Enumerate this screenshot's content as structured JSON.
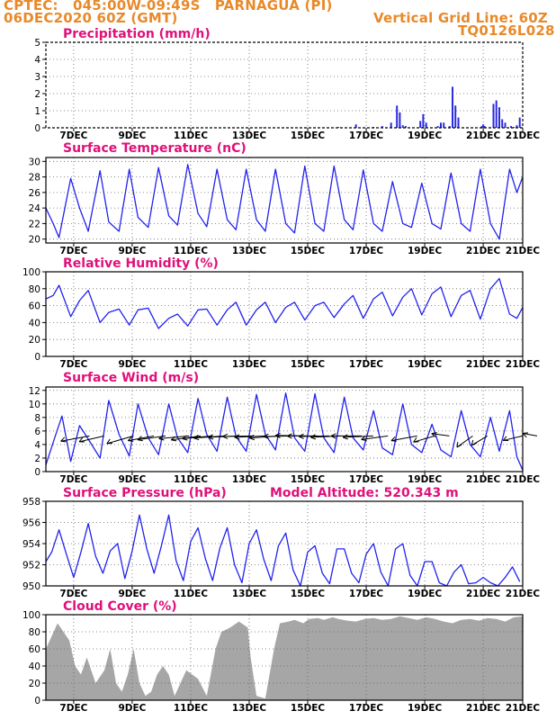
{
  "header": {
    "line1": "CPTEC:   045:00W-09:49S   PARNAGUA (PI)",
    "line2": "06DEC2020 60Z (GMT)",
    "grid_note": "Vertical Grid Line: 60Z",
    "model_code": "TQ0126L028"
  },
  "colors": {
    "header": "#e8892a",
    "title": "#e0107a",
    "line": "#2222ee",
    "bar": "#2a2ae0",
    "cloud": "#a6a6a6"
  },
  "x_ticks": [
    "7DEC",
    "9DEC",
    "11DEC",
    "13DEC",
    "15DEC",
    "17DEC",
    "19DEC",
    "21DEC"
  ],
  "chart_data": [
    {
      "id": "precip",
      "type": "bar",
      "title": "Precipitation (mm/h)",
      "ylim": [
        0,
        5
      ],
      "yticks": [
        0,
        1,
        2,
        3,
        4,
        5
      ],
      "x_days": [
        0.4,
        1.2,
        2.5,
        3.6,
        4.9,
        6.1,
        7.4,
        8.9,
        10.0,
        10.6,
        11.2,
        11.5,
        11.8,
        12.0,
        12.1,
        12.2,
        12.3,
        12.8,
        12.9,
        13.0,
        13.4,
        13.5,
        13.6,
        13.8,
        13.9,
        14.0,
        14.1,
        14.9,
        14.95,
        15.0,
        15.3,
        15.4,
        15.5,
        15.6,
        15.7,
        15.9,
        16.0,
        16.1,
        16.2
      ],
      "values": [
        0.02,
        0.02,
        0.02,
        0.02,
        0.03,
        0.02,
        0.02,
        0.02,
        0.05,
        0.2,
        0.05,
        0.1,
        0.3,
        1.3,
        0.9,
        0.15,
        0.1,
        0.4,
        0.8,
        0.3,
        0.1,
        0.3,
        0.3,
        0.1,
        2.4,
        1.3,
        0.6,
        0.1,
        0.2,
        0.1,
        1.4,
        1.6,
        1.2,
        0.5,
        0.3,
        0.1,
        0.05,
        0.15,
        0.6
      ]
    },
    {
      "id": "temp",
      "type": "line",
      "title": "Surface Temperature (nC)",
      "ylim": [
        19.5,
        30.5
      ],
      "yticks": [
        20,
        22,
        24,
        26,
        28,
        30
      ],
      "x_days": [
        0.0,
        0.25,
        0.45,
        0.85,
        1.15,
        1.45,
        1.85,
        2.15,
        2.5,
        2.85,
        3.15,
        3.5,
        3.85,
        4.2,
        4.5,
        4.85,
        5.2,
        5.5,
        5.85,
        6.2,
        6.5,
        6.85,
        7.2,
        7.5,
        7.85,
        8.2,
        8.5,
        8.85,
        9.2,
        9.5,
        9.85,
        10.2,
        10.5,
        10.85,
        11.2,
        11.5,
        11.85,
        12.2,
        12.5,
        12.85,
        13.2,
        13.5,
        13.85,
        14.2,
        14.5,
        14.85,
        15.2,
        15.5,
        15.85,
        16.1,
        16.3
      ],
      "values": [
        24.0,
        22.0,
        20.2,
        27.8,
        24.0,
        21.0,
        28.8,
        22.2,
        21.0,
        29.0,
        22.8,
        21.5,
        29.2,
        23.0,
        21.8,
        29.6,
        23.3,
        21.6,
        29.0,
        22.5,
        21.2,
        29.0,
        22.5,
        21.0,
        29.0,
        22.0,
        20.8,
        29.4,
        22.0,
        21.0,
        29.4,
        22.5,
        21.2,
        28.9,
        22.0,
        21.0,
        27.4,
        22.0,
        21.5,
        27.2,
        22.0,
        21.3,
        28.5,
        22.0,
        21.0,
        29.0,
        22.0,
        20.0,
        29.0,
        26.0,
        28.0
      ]
    },
    {
      "id": "rh",
      "type": "line",
      "title": "Relative Humidity (%)",
      "ylim": [
        0,
        100
      ],
      "yticks": [
        0,
        20,
        40,
        60,
        80,
        100
      ],
      "x_days": [
        0.0,
        0.25,
        0.45,
        0.85,
        1.15,
        1.45,
        1.85,
        2.15,
        2.5,
        2.85,
        3.15,
        3.5,
        3.85,
        4.2,
        4.5,
        4.85,
        5.2,
        5.5,
        5.85,
        6.2,
        6.5,
        6.85,
        7.2,
        7.5,
        7.85,
        8.2,
        8.5,
        8.85,
        9.2,
        9.5,
        9.85,
        10.2,
        10.5,
        10.85,
        11.2,
        11.5,
        11.85,
        12.2,
        12.5,
        12.85,
        13.2,
        13.5,
        13.85,
        14.2,
        14.5,
        14.85,
        15.2,
        15.5,
        15.85,
        16.1,
        16.3
      ],
      "values": [
        68,
        72,
        84,
        47,
        66,
        78,
        40,
        52,
        56,
        37,
        55,
        57,
        33,
        45,
        50,
        36,
        55,
        56,
        37,
        55,
        64,
        37,
        55,
        64,
        40,
        58,
        64,
        43,
        60,
        64,
        46,
        62,
        72,
        45,
        68,
        76,
        48,
        70,
        80,
        49,
        74,
        82,
        47,
        72,
        78,
        44,
        80,
        92,
        50,
        45,
        58
      ]
    },
    {
      "id": "wind",
      "type": "line",
      "title": "Surface Wind (m/s)",
      "ylim": [
        0,
        12.5
      ],
      "yticks": [
        0,
        2,
        4,
        6,
        8,
        10,
        12
      ],
      "x_days": [
        0.0,
        0.3,
        0.55,
        0.85,
        1.15,
        1.45,
        1.85,
        2.15,
        2.5,
        2.85,
        3.15,
        3.5,
        3.85,
        4.2,
        4.5,
        4.85,
        5.2,
        5.5,
        5.85,
        6.2,
        6.5,
        6.85,
        7.2,
        7.5,
        7.85,
        8.2,
        8.5,
        8.85,
        9.2,
        9.5,
        9.85,
        10.2,
        10.5,
        10.85,
        11.2,
        11.5,
        11.85,
        12.2,
        12.5,
        12.85,
        13.2,
        13.5,
        13.85,
        14.2,
        14.5,
        14.85,
        15.2,
        15.5,
        15.85,
        16.1,
        16.3
      ],
      "values": [
        1.0,
        5.0,
        8.2,
        1.5,
        6.8,
        4.8,
        2.0,
        10.5,
        5.5,
        2.3,
        10.0,
        5.0,
        2.5,
        10.0,
        5.0,
        2.8,
        10.8,
        5.5,
        3.0,
        11.0,
        5.2,
        3.0,
        11.4,
        5.5,
        3.2,
        11.6,
        5.0,
        3.0,
        11.5,
        5.0,
        2.8,
        11.0,
        5.0,
        3.2,
        9.0,
        3.5,
        2.5,
        10.0,
        4.0,
        2.8,
        7.0,
        3.2,
        2.2,
        9.0,
        4.0,
        2.2,
        8.0,
        3.0,
        9.0,
        2.2,
        0.2
      ],
      "arrows_x_days": [
        1.0,
        1.5,
        2.5,
        3.2,
        3.6,
        4.4,
        4.8,
        5.2,
        5.6,
        6.1,
        6.6,
        7.0,
        7.5,
        8.0,
        8.4,
        8.8,
        9.2,
        9.6,
        10.3,
        10.7,
        11.2,
        12.2,
        12.8,
        13.3,
        14.1,
        14.6,
        15.8,
        16.3
      ],
      "arrows_dir_deg": [
        200,
        205,
        210,
        200,
        195,
        190,
        195,
        190,
        188,
        185,
        182,
        185,
        188,
        182,
        178,
        180,
        182,
        185,
        180,
        185,
        195,
        200,
        210,
        165,
        235,
        230,
        205,
        160
      ],
      "arrows_len": [
        1.0,
        0.9,
        1.0,
        0.9,
        0.95,
        1.0,
        1.0,
        1.0,
        1.0,
        1.0,
        1.0,
        1.0,
        1.0,
        1.0,
        1.0,
        1.0,
        1.0,
        1.0,
        1.0,
        1.0,
        0.9,
        0.9,
        0.8,
        0.6,
        0.9,
        0.8,
        0.7,
        0.5
      ]
    },
    {
      "id": "pres",
      "type": "line",
      "title": "Surface Pressure (hPa)",
      "ylim": [
        950,
        958
      ],
      "yticks": [
        950,
        952,
        954,
        956,
        958
      ],
      "annotation": "Model Altitude: 520.343 m",
      "x_days": [
        0.0,
        0.2,
        0.45,
        0.7,
        0.95,
        1.2,
        1.45,
        1.7,
        1.95,
        2.2,
        2.45,
        2.7,
        2.95,
        3.2,
        3.45,
        3.7,
        3.95,
        4.2,
        4.45,
        4.7,
        4.95,
        5.2,
        5.45,
        5.7,
        5.95,
        6.2,
        6.45,
        6.7,
        6.95,
        7.2,
        7.45,
        7.7,
        7.95,
        8.2,
        8.45,
        8.7,
        8.95,
        9.2,
        9.45,
        9.7,
        9.95,
        10.2,
        10.45,
        10.7,
        10.95,
        11.2,
        11.45,
        11.7,
        11.95,
        12.2,
        12.45,
        12.7,
        12.95,
        13.2,
        13.45,
        13.7,
        13.95,
        14.2,
        14.45,
        14.7,
        14.95,
        15.2,
        15.45,
        15.7,
        15.95,
        16.2
      ],
      "values": [
        952.3,
        953.2,
        955.3,
        953.0,
        950.8,
        953.2,
        955.9,
        952.8,
        951.2,
        953.3,
        954.0,
        950.7,
        953.3,
        956.7,
        953.5,
        951.2,
        953.8,
        956.7,
        952.4,
        950.5,
        954.2,
        955.5,
        952.6,
        950.5,
        953.6,
        955.5,
        952.0,
        950.3,
        954.0,
        955.3,
        952.5,
        950.5,
        953.8,
        955.0,
        951.5,
        950.0,
        953.2,
        953.8,
        951.2,
        950.2,
        953.5,
        953.5,
        951.2,
        950.3,
        953.0,
        954.0,
        951.3,
        950.0,
        953.5,
        954.0,
        951.0,
        950.0,
        952.3,
        952.3,
        950.3,
        949.8,
        951.3,
        952.0,
        950.2,
        950.3,
        950.8,
        950.3,
        950.0,
        950.8,
        951.8,
        950.4
      ]
    },
    {
      "id": "cloud",
      "type": "area",
      "title": "Cloud Cover (%)",
      "ylim": [
        0,
        100
      ],
      "yticks": [
        0,
        20,
        40,
        60,
        80,
        100
      ],
      "x_days": [
        0.0,
        0.4,
        0.8,
        1.0,
        1.2,
        1.4,
        1.7,
        2.0,
        2.2,
        2.4,
        2.6,
        2.8,
        3.0,
        3.2,
        3.4,
        3.6,
        3.8,
        4.0,
        4.2,
        4.4,
        4.6,
        4.8,
        5.0,
        5.2,
        5.5,
        5.8,
        6.0,
        6.3,
        6.6,
        6.9,
        7.0,
        7.2,
        7.5,
        7.8,
        8.0,
        8.3,
        8.5,
        8.8,
        9.0,
        9.3,
        9.5,
        9.8,
        10.0,
        10.3,
        10.6,
        10.9,
        11.2,
        11.5,
        11.8,
        12.1,
        12.4,
        12.7,
        13.0,
        13.3,
        13.6,
        13.9,
        14.2,
        14.5,
        14.8,
        15.1,
        15.4,
        15.7,
        16.0,
        16.3
      ],
      "values": [
        60,
        90,
        70,
        40,
        30,
        50,
        20,
        35,
        60,
        20,
        10,
        30,
        60,
        20,
        5,
        10,
        30,
        40,
        30,
        5,
        20,
        35,
        30,
        25,
        5,
        60,
        80,
        85,
        92,
        85,
        50,
        5,
        2,
        60,
        90,
        92,
        94,
        90,
        95,
        96,
        94,
        97,
        95,
        93,
        92,
        95,
        96,
        94,
        95,
        98,
        96,
        94,
        97,
        95,
        92,
        90,
        94,
        95,
        93,
        96,
        95,
        92,
        97,
        98
      ]
    }
  ]
}
